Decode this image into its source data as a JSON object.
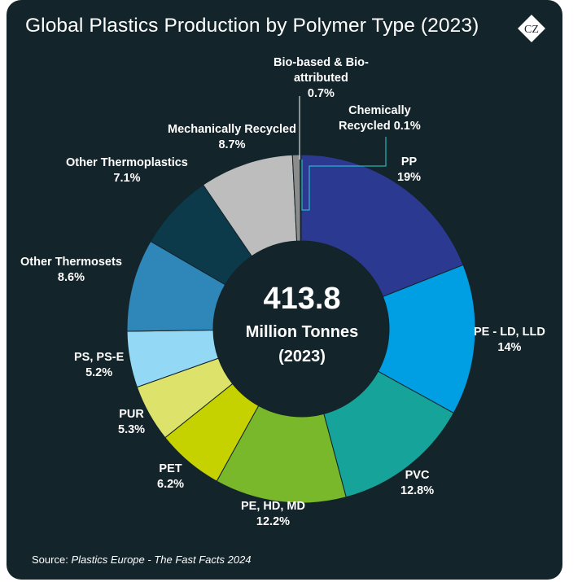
{
  "title": "Global Plastics Production by Polymer Type (2023)",
  "logo_text": "CZ",
  "center": {
    "value": "413.8",
    "unit": "Million Tonnes",
    "year": "(2023)"
  },
  "source": {
    "prefix": "Source:",
    "text": "Plastics Europe - The Fast Facts 2024"
  },
  "chart_data": {
    "type": "pie",
    "donut": true,
    "total": 413.8,
    "title": "Global Plastics Production by Polymer Type (2023)",
    "slices": [
      {
        "name": "PP",
        "value": 19,
        "value_label": "19%",
        "color": "#2b3990"
      },
      {
        "name": "PE - LD, LLD",
        "value": 14,
        "value_label": "14%",
        "color": "#009fe3"
      },
      {
        "name": "PVC",
        "value": 12.8,
        "value_label": "12.8%",
        "color": "#16a39a"
      },
      {
        "name": "PE, HD, MD",
        "value": 12.2,
        "value_label": "12.2%",
        "color": "#78b82a"
      },
      {
        "name": "PET",
        "value": 6.2,
        "value_label": "6.2%",
        "color": "#c6d200"
      },
      {
        "name": "PUR",
        "value": 5.3,
        "value_label": "5.3%",
        "color": "#dde36a"
      },
      {
        "name": "PS, PS-E",
        "value": 5.2,
        "value_label": "5.2%",
        "color": "#93d8f4"
      },
      {
        "name": "Other Thermosets",
        "value": 8.6,
        "value_label": "8.6%",
        "color": "#2f86b8"
      },
      {
        "name": "Other Thermoplastics",
        "value": 7.1,
        "value_label": "7.1%",
        "color": "#0c3a4b"
      },
      {
        "name": "Mechanically Recycled",
        "value": 8.7,
        "value_label": "8.7%",
        "color": "#bdbdbd"
      },
      {
        "name": "Bio-based & Bio-attributed",
        "value": 0.7,
        "value_label": "0.7%",
        "color": "#8c8c8c"
      },
      {
        "name": "Chemically Recycled",
        "value": 0.1,
        "value_label": "0.1%",
        "color": "#5a5a5a"
      }
    ]
  }
}
